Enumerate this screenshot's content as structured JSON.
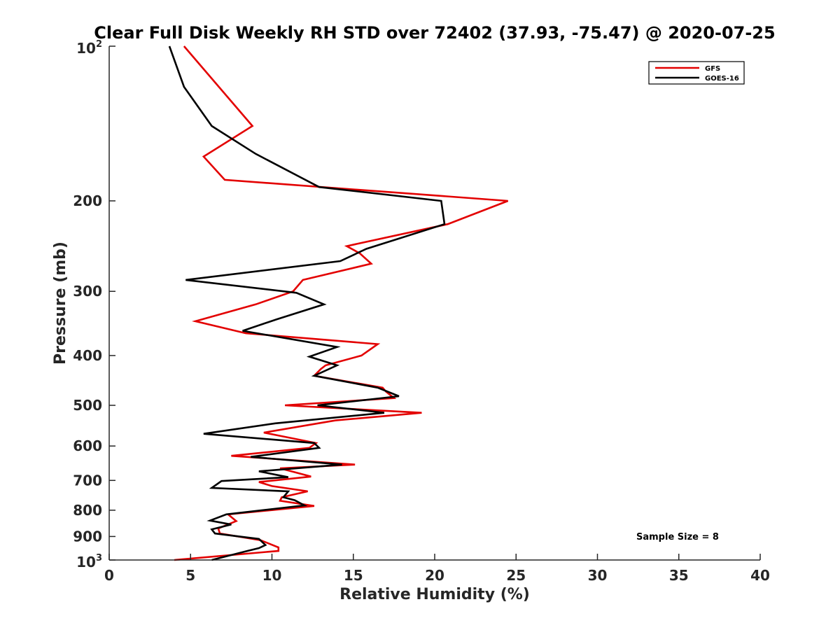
{
  "chart_data": {
    "type": "line",
    "title": "Clear Full Disk Weekly RH STD over 72402 (37.93, -75.47) @ 2020-07-25",
    "xlabel": "Relative Humidity (%)",
    "ylabel": "Pressure (mb)",
    "xlim": [
      0,
      40
    ],
    "ylim": [
      100,
      1000
    ],
    "yscale": "log",
    "ydirection": "reverse",
    "xticks": [
      0,
      5,
      10,
      15,
      20,
      25,
      30,
      35,
      40
    ],
    "xtick_labels": [
      "0",
      "5",
      "10",
      "15",
      "20",
      "25",
      "30",
      "35",
      "40"
    ],
    "yticks": [
      200,
      300,
      400,
      500,
      600,
      700,
      800,
      900
    ],
    "ytick_labels": [
      "200",
      "300",
      "400",
      "500",
      "600",
      "700",
      "800",
      "900"
    ],
    "ytick_top": {
      "base": "10",
      "exp": "2"
    },
    "ytick_bottom": {
      "base": "10",
      "exp": "3"
    },
    "legend_position": "top-right",
    "grid": false,
    "annotation": "Sample Size = 8",
    "series": [
      {
        "name": "GFS",
        "color": "#e30000",
        "points": [
          [
            4.6,
            100
          ],
          [
            8.8,
            143
          ],
          [
            5.8,
            164
          ],
          [
            7.1,
            182
          ],
          [
            24.5,
            200
          ],
          [
            20.8,
            222
          ],
          [
            14.6,
            245
          ],
          [
            15.4,
            253
          ],
          [
            16.1,
            265
          ],
          [
            11.9,
            285
          ],
          [
            11.3,
            300
          ],
          [
            9.0,
            318
          ],
          [
            5.3,
            343
          ],
          [
            8.4,
            362
          ],
          [
            16.5,
            380
          ],
          [
            15.5,
            400
          ],
          [
            13.3,
            418
          ],
          [
            13.0,
            425
          ],
          [
            12.6,
            438
          ],
          [
            16.8,
            462
          ],
          [
            17.0,
            470
          ],
          [
            17.5,
            484
          ],
          [
            10.8,
            500
          ],
          [
            19.2,
            517
          ],
          [
            13.9,
            535
          ],
          [
            9.5,
            565
          ],
          [
            12.7,
            592
          ],
          [
            12.3,
            605
          ],
          [
            7.5,
            627
          ],
          [
            15.1,
            652
          ],
          [
            10.5,
            663
          ],
          [
            12.4,
            688
          ],
          [
            9.2,
            705
          ],
          [
            10.0,
            718
          ],
          [
            12.2,
            735
          ],
          [
            10.6,
            755
          ],
          [
            10.5,
            767
          ],
          [
            12.6,
            785
          ],
          [
            7.3,
            815
          ],
          [
            7.8,
            840
          ],
          [
            6.7,
            868
          ],
          [
            6.8,
            888
          ],
          [
            9.3,
            915
          ],
          [
            10.4,
            945
          ],
          [
            10.4,
            960
          ],
          [
            4.0,
            1000
          ]
        ]
      },
      {
        "name": "GOES-16",
        "color": "#000000",
        "points": [
          [
            3.7,
            100
          ],
          [
            4.6,
            120
          ],
          [
            6.3,
            143
          ],
          [
            9.0,
            162
          ],
          [
            12.9,
            188
          ],
          [
            20.4,
            200
          ],
          [
            20.6,
            222
          ],
          [
            15.8,
            248
          ],
          [
            14.2,
            262
          ],
          [
            4.7,
            285
          ],
          [
            11.5,
            302
          ],
          [
            13.2,
            318
          ],
          [
            10.3,
            340
          ],
          [
            8.2,
            358
          ],
          [
            14.0,
            385
          ],
          [
            12.3,
            402
          ],
          [
            14.0,
            418
          ],
          [
            12.6,
            438
          ],
          [
            16.5,
            462
          ],
          [
            17.8,
            480
          ],
          [
            12.8,
            500
          ],
          [
            16.9,
            517
          ],
          [
            10.2,
            542
          ],
          [
            5.8,
            568
          ],
          [
            12.6,
            592
          ],
          [
            12.9,
            605
          ],
          [
            8.7,
            630
          ],
          [
            14.3,
            652
          ],
          [
            9.2,
            672
          ],
          [
            11.0,
            690
          ],
          [
            6.9,
            702
          ],
          [
            6.3,
            724
          ],
          [
            11.0,
            735
          ],
          [
            10.7,
            755
          ],
          [
            11.4,
            765
          ],
          [
            12.0,
            783
          ],
          [
            7.2,
            815
          ],
          [
            6.2,
            838
          ],
          [
            7.5,
            853
          ],
          [
            6.3,
            872
          ],
          [
            6.5,
            888
          ],
          [
            9.2,
            910
          ],
          [
            9.6,
            935
          ],
          [
            9.2,
            948
          ],
          [
            8.5,
            960
          ],
          [
            6.3,
            1000
          ]
        ]
      }
    ]
  }
}
